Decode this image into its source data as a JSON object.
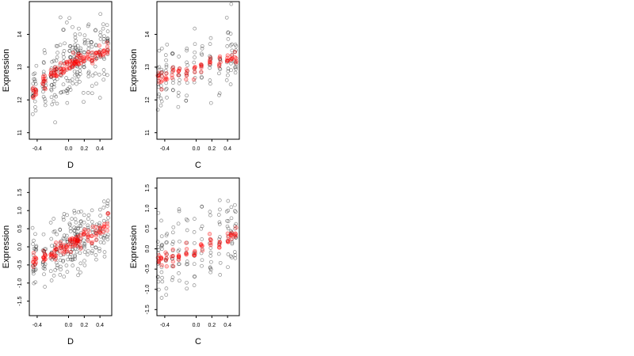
{
  "chart_data": [
    {
      "type": "scatter",
      "xlabel": "D",
      "ylabel": "Expression",
      "xlim": [
        -0.5,
        0.55
      ],
      "ylim": [
        10.8,
        15.0
      ],
      "xticks": [
        -0.4,
        0.0,
        0.2,
        0.4
      ],
      "xtick_labels": [
        "-0.4",
        "0.0",
        "0.2",
        "0.4"
      ],
      "yticks": [
        11,
        12,
        13,
        14
      ],
      "ytick_labels": [
        "11",
        "12",
        "13",
        "14"
      ],
      "x_levels": [
        -0.45,
        -0.42,
        -0.32,
        -0.3,
        -0.22,
        -0.18,
        -0.15,
        -0.1,
        -0.06,
        -0.02,
        0.02,
        0.05,
        0.08,
        0.1,
        0.12,
        0.15,
        0.2,
        0.25,
        0.3,
        0.35,
        0.4,
        0.45,
        0.5
      ],
      "fitted": {
        "intercept": 13.05,
        "slope": 1.05,
        "curve": -1.8
      },
      "observed_spread": 0.55,
      "grid": false,
      "legend": "none"
    },
    {
      "type": "scatter",
      "xlabel": "C",
      "ylabel": "Expression",
      "xlim": [
        -0.5,
        0.55
      ],
      "ylim": [
        10.8,
        15.0
      ],
      "xticks": [
        -0.4,
        0.0,
        0.2,
        0.4
      ],
      "xtick_labels": [
        "-0.4",
        "0.0",
        "0.2",
        "0.4"
      ],
      "yticks": [
        11,
        12,
        13,
        14
      ],
      "ytick_labels": [
        "11",
        "12",
        "13",
        "14"
      ],
      "x_levels": [
        -0.48,
        -0.44,
        -0.38,
        -0.3,
        -0.22,
        -0.12,
        -0.02,
        0.07,
        0.18,
        0.3,
        0.4,
        0.45,
        0.5
      ],
      "fitted": {
        "intercept": 13.0,
        "slope": 0.65,
        "curve": 0
      },
      "observed_spread": 0.5,
      "grid": false,
      "legend": "none"
    },
    {
      "type": "scatter",
      "xlabel": "D",
      "ylabel": "Expression",
      "xlim": [
        -0.5,
        0.55
      ],
      "ylim": [
        -1.9,
        1.9
      ],
      "xticks": [
        -0.4,
        0.0,
        0.2,
        0.4
      ],
      "xtick_labels": [
        "-0.4",
        "0.0",
        "0.2",
        "0.4"
      ],
      "yticks": [
        -1.5,
        -1.0,
        -0.5,
        0.0,
        0.5,
        1.0,
        1.5
      ],
      "ytick_labels": [
        "-1.5",
        "-1.0",
        "-0.5",
        "0.0",
        "0.5",
        "1.0",
        "1.5"
      ],
      "x_levels": [
        -0.45,
        -0.42,
        -0.32,
        -0.3,
        -0.22,
        -0.18,
        -0.15,
        -0.1,
        -0.06,
        -0.02,
        0.02,
        0.05,
        0.08,
        0.1,
        0.12,
        0.15,
        0.2,
        0.25,
        0.3,
        0.35,
        0.4,
        0.45,
        0.5
      ],
      "fitted": {
        "intercept": 0.05,
        "slope": 1.05,
        "curve": 0
      },
      "observed_spread": 0.45,
      "grid": false,
      "legend": "none"
    },
    {
      "type": "scatter",
      "xlabel": "C",
      "ylabel": "Expression",
      "xlim": [
        -0.5,
        0.55
      ],
      "ylim": [
        -1.65,
        1.75
      ],
      "xticks": [
        -0.4,
        0.0,
        0.2,
        0.4
      ],
      "xtick_labels": [
        "-0.4",
        "0.0",
        "0.2",
        "0.4"
      ],
      "yticks": [
        -1.5,
        -1.0,
        -0.5,
        0.0,
        0.5,
        1.0,
        1.5
      ],
      "ytick_labels": [
        "-1.5",
        "-1.0",
        "-0.5",
        "0.0",
        "0.5",
        "1.0",
        "1.5"
      ],
      "x_levels": [
        -0.48,
        -0.44,
        -0.38,
        -0.3,
        -0.22,
        -0.12,
        -0.02,
        0.07,
        0.18,
        0.3,
        0.4,
        0.45,
        0.5
      ],
      "fitted": {
        "intercept": 0.02,
        "slope": 0.62,
        "curve": 0
      },
      "observed_spread": 0.45,
      "grid": false,
      "legend": "none"
    }
  ]
}
